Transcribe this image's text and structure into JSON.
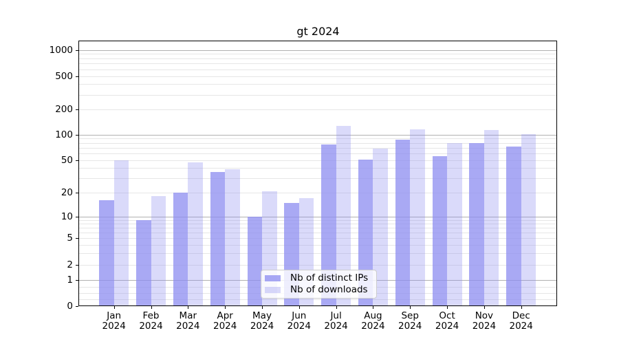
{
  "chart_data": {
    "type": "bar",
    "title": "gt 2024",
    "categories": [
      "Jan",
      "Feb",
      "Mar",
      "Apr",
      "May",
      "Jun",
      "Jul",
      "Aug",
      "Sep",
      "Oct",
      "Nov",
      "Dec"
    ],
    "x_tick_labels_line2": "2024",
    "series": [
      {
        "name": "Nb of distinct IPs",
        "values": [
          16,
          9,
          20,
          36,
          10,
          15,
          76,
          51,
          87,
          56,
          80,
          72
        ],
        "color": "rgba(140,140,240,0.75)",
        "rendered_hex": "#a9a9f4"
      },
      {
        "name": "Nb of downloads",
        "values": [
          50,
          18,
          47,
          39,
          21,
          17,
          126,
          69,
          115,
          80,
          113,
          102
        ],
        "color": "rgba(140,140,240,0.32)",
        "rendered_hex": "#dadaf9"
      }
    ],
    "y_ticks": [
      0,
      1,
      2,
      5,
      10,
      20,
      50,
      100,
      200,
      500,
      1000
    ],
    "y_scale": "symlog",
    "ylim": [
      0,
      1000
    ],
    "grid": true,
    "legend_position": "lower center",
    "colors": {
      "grid_major": "#b0b0b0",
      "grid_minor": "#e6e6e6",
      "axis": "#000000",
      "legend_border": "#cccccc"
    }
  }
}
